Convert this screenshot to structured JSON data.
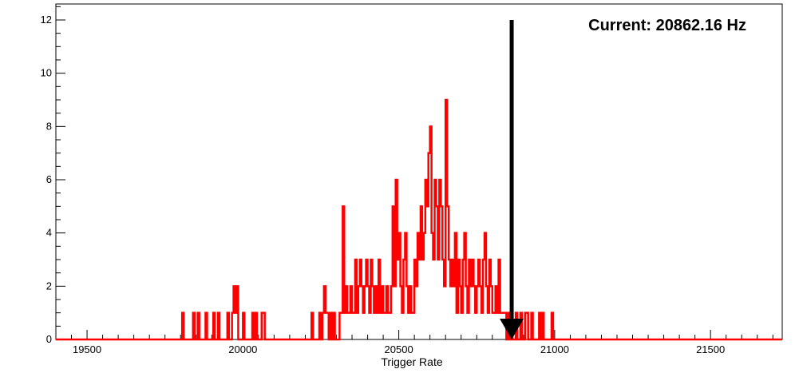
{
  "chart_data": {
    "type": "histogram",
    "xlabel": "Trigger Rate",
    "ylabel": "",
    "xlim": [
      19400,
      21730
    ],
    "ylim": [
      0,
      12.6
    ],
    "x_ticks": [
      19500,
      20000,
      20500,
      21000,
      21500
    ],
    "y_ticks": [
      0,
      2,
      4,
      6,
      8,
      10,
      12
    ],
    "bin_width": 5,
    "series": [
      {
        "color": "#ff0000",
        "bins": [
          [
            19805,
            1
          ],
          [
            19825,
            0
          ],
          [
            19840,
            1
          ],
          [
            19855,
            1
          ],
          [
            19870,
            0
          ],
          [
            19880,
            1
          ],
          [
            19895,
            0
          ],
          [
            19905,
            1
          ],
          [
            19920,
            1
          ],
          [
            19935,
            0
          ],
          [
            19950,
            1
          ],
          [
            19965,
            1
          ],
          [
            19970,
            2
          ],
          [
            19975,
            1
          ],
          [
            19980,
            2
          ],
          [
            19985,
            0
          ],
          [
            20000,
            1
          ],
          [
            20010,
            0
          ],
          [
            20030,
            1
          ],
          [
            20040,
            1
          ],
          [
            20045,
            0
          ],
          [
            20060,
            1
          ],
          [
            20065,
            1
          ],
          [
            20070,
            0
          ],
          [
            20220,
            1
          ],
          [
            20230,
            0
          ],
          [
            20245,
            1
          ],
          [
            20250,
            0
          ],
          [
            20255,
            1
          ],
          [
            20260,
            2
          ],
          [
            20265,
            1
          ],
          [
            20270,
            1
          ],
          [
            20275,
            0
          ],
          [
            20280,
            1
          ],
          [
            20285,
            0
          ],
          [
            20290,
            1
          ],
          [
            20300,
            0
          ],
          [
            20310,
            1
          ],
          [
            20315,
            1
          ],
          [
            20320,
            5
          ],
          [
            20325,
            1
          ],
          [
            20330,
            2
          ],
          [
            20335,
            1
          ],
          [
            20340,
            1
          ],
          [
            20345,
            2
          ],
          [
            20350,
            1
          ],
          [
            20355,
            1
          ],
          [
            20360,
            3
          ],
          [
            20365,
            1
          ],
          [
            20370,
            2
          ],
          [
            20375,
            3
          ],
          [
            20380,
            2
          ],
          [
            20385,
            1
          ],
          [
            20390,
            2
          ],
          [
            20395,
            3
          ],
          [
            20400,
            2
          ],
          [
            20405,
            1
          ],
          [
            20410,
            3
          ],
          [
            20415,
            2
          ],
          [
            20420,
            1
          ],
          [
            20425,
            2
          ],
          [
            20430,
            1
          ],
          [
            20435,
            3
          ],
          [
            20440,
            1
          ],
          [
            20445,
            2
          ],
          [
            20450,
            1
          ],
          [
            20455,
            1
          ],
          [
            20460,
            2
          ],
          [
            20465,
            1
          ],
          [
            20470,
            1
          ],
          [
            20475,
            2
          ],
          [
            20480,
            5
          ],
          [
            20485,
            2
          ],
          [
            20490,
            6
          ],
          [
            20495,
            3
          ],
          [
            20500,
            4
          ],
          [
            20505,
            2
          ],
          [
            20510,
            1
          ],
          [
            20515,
            3
          ],
          [
            20520,
            4
          ],
          [
            20525,
            2
          ],
          [
            20530,
            1
          ],
          [
            20535,
            2
          ],
          [
            20540,
            1
          ],
          [
            20545,
            1
          ],
          [
            20550,
            3
          ],
          [
            20555,
            2
          ],
          [
            20560,
            4
          ],
          [
            20565,
            3
          ],
          [
            20570,
            5
          ],
          [
            20575,
            3
          ],
          [
            20580,
            4
          ],
          [
            20585,
            6
          ],
          [
            20590,
            5
          ],
          [
            20595,
            7
          ],
          [
            20600,
            8
          ],
          [
            20605,
            4
          ],
          [
            20610,
            3
          ],
          [
            20615,
            6
          ],
          [
            20620,
            5
          ],
          [
            20625,
            3
          ],
          [
            20630,
            6
          ],
          [
            20635,
            5
          ],
          [
            20640,
            3
          ],
          [
            20645,
            2
          ],
          [
            20650,
            9
          ],
          [
            20655,
            5
          ],
          [
            20660,
            3
          ],
          [
            20665,
            2
          ],
          [
            20670,
            3
          ],
          [
            20675,
            2
          ],
          [
            20680,
            4
          ],
          [
            20685,
            1
          ],
          [
            20690,
            3
          ],
          [
            20695,
            2
          ],
          [
            20700,
            1
          ],
          [
            20705,
            3
          ],
          [
            20710,
            4
          ],
          [
            20715,
            2
          ],
          [
            20720,
            1
          ],
          [
            20725,
            3
          ],
          [
            20730,
            2
          ],
          [
            20735,
            3
          ],
          [
            20740,
            2
          ],
          [
            20745,
            1
          ],
          [
            20750,
            2
          ],
          [
            20755,
            3
          ],
          [
            20760,
            2
          ],
          [
            20765,
            1
          ],
          [
            20770,
            3
          ],
          [
            20775,
            4
          ],
          [
            20780,
            2
          ],
          [
            20785,
            1
          ],
          [
            20790,
            3
          ],
          [
            20795,
            2
          ],
          [
            20800,
            1
          ],
          [
            20805,
            1
          ],
          [
            20810,
            2
          ],
          [
            20815,
            1
          ],
          [
            20820,
            3
          ],
          [
            20825,
            1
          ],
          [
            20830,
            1
          ],
          [
            20835,
            1
          ],
          [
            20840,
            1
          ],
          [
            20845,
            0
          ],
          [
            20850,
            1
          ],
          [
            20855,
            0
          ],
          [
            20860,
            1
          ],
          [
            20865,
            0
          ],
          [
            20875,
            1
          ],
          [
            20880,
            0
          ],
          [
            20890,
            1
          ],
          [
            20895,
            0
          ],
          [
            20905,
            1
          ],
          [
            20910,
            1
          ],
          [
            20915,
            0
          ],
          [
            20925,
            1
          ],
          [
            20930,
            0
          ],
          [
            20950,
            1
          ],
          [
            20955,
            0
          ],
          [
            20960,
            1
          ],
          [
            20965,
            0
          ],
          [
            20990,
            1
          ],
          [
            20995,
            0
          ]
        ]
      }
    ],
    "annotations": [
      {
        "text": "Current: 20862.16 Hz"
      }
    ],
    "marker": {
      "x": 20862.16,
      "from_y": 12,
      "to_y": 0,
      "color": "#000000"
    }
  }
}
